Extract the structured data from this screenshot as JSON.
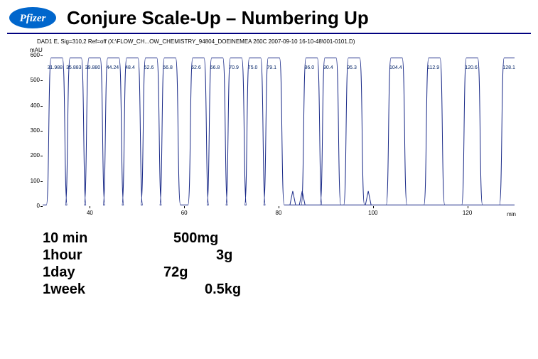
{
  "title": "Conjure Scale-Up – Numbering Up",
  "logo": {
    "text": "Pfizer",
    "bg": "#0066cc",
    "fg": "#ffffff"
  },
  "chart": {
    "type": "line",
    "header": "DAD1 E, Sig=310,2 Ref=off (X:\\FLOW_CH...OW_CHEMISTRY_94804_DOEINEMEA 260C 2007-09-10 16-10-48\\001-0101.D)",
    "ylabel": "mAU",
    "xlabel": "min",
    "ylim": [
      0,
      600
    ],
    "y_ticks": [
      0,
      100,
      200,
      300,
      400,
      500,
      600
    ],
    "xlim": [
      30,
      130
    ],
    "x_ticks": [
      40,
      60,
      80,
      100,
      120
    ],
    "baseline_y": 5,
    "peak_height": 590,
    "series_color": "#1a2a88",
    "bg": "#ffffff",
    "peak_labels": [
      {
        "x": 32.5,
        "t": "31.988"
      },
      {
        "x": 36.5,
        "t": "35.883"
      },
      {
        "x": 40.5,
        "t": "39.880"
      },
      {
        "x": 45,
        "t": "44.24"
      },
      {
        "x": 49,
        "t": "48.4"
      },
      {
        "x": 53,
        "t": "52.6"
      },
      {
        "x": 57,
        "t": "56.8"
      },
      {
        "x": 63,
        "t": "62.6"
      },
      {
        "x": 67,
        "t": "66.8"
      },
      {
        "x": 71,
        "t": "70.9"
      },
      {
        "x": 75,
        "t": "75.0"
      },
      {
        "x": 79,
        "t": "79.1"
      },
      {
        "x": 87,
        "t": "86.0"
      },
      {
        "x": 91,
        "t": "90.4"
      },
      {
        "x": 96,
        "t": "95.3"
      },
      {
        "x": 105,
        "t": "104.4"
      },
      {
        "x": 113,
        "t": "112.9"
      },
      {
        "x": 121,
        "t": "120.6"
      },
      {
        "x": 129,
        "t": "128.1"
      }
    ],
    "peaks_x": [
      33,
      37,
      41,
      45,
      49,
      53,
      57,
      63,
      67,
      71,
      75,
      79,
      87,
      91,
      96,
      105,
      113,
      121,
      129
    ],
    "extra_bumps_x": [
      83,
      85,
      99
    ]
  },
  "table": {
    "rows": [
      {
        "time": "10 min",
        "amount": "500mg",
        "indent": 0
      },
      {
        "time": "1hour",
        "amount": "3g",
        "indent": 1
      },
      {
        "time": "1day",
        "amount": "72g",
        "indent": 2
      },
      {
        "time": "1week",
        "amount": "0.5kg",
        "indent": 3
      }
    ]
  }
}
